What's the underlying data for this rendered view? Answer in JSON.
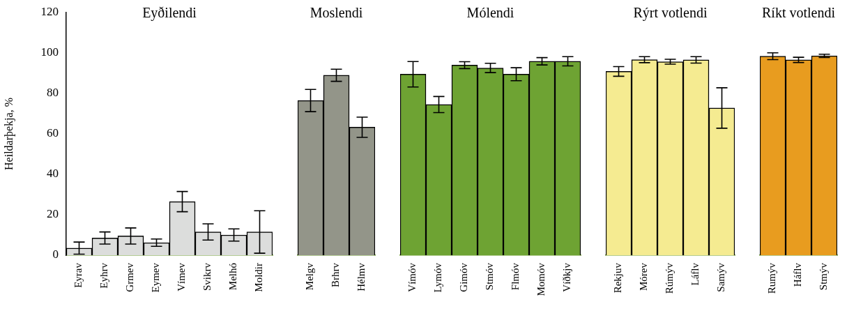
{
  "chart_data": [
    {
      "type": "bar",
      "title": "Eyðilendi",
      "ylabel": "Heildarþekja, %",
      "categories": [
        "Eyrav",
        "Eyhrv",
        "Grmev",
        "Eymev",
        "Vímev",
        "Svikrv",
        "Melhó",
        "Moldir"
      ],
      "values": [
        3.5,
        8.5,
        9.5,
        6.2,
        26.5,
        11.5,
        10,
        11.5
      ],
      "errors": [
        3,
        3,
        4,
        1.8,
        5,
        4,
        3,
        10.5
      ],
      "color": "#dcdddc",
      "ylim": [
        0,
        120
      ],
      "yticks": [
        0,
        20,
        40,
        60,
        80,
        100,
        120
      ]
    },
    {
      "type": "bar",
      "title": "Moslendi",
      "categories": [
        "Melgv",
        "Brhrv",
        "Hélmv"
      ],
      "values": [
        76.5,
        89,
        63.3
      ],
      "errors": [
        5.5,
        3,
        5
      ],
      "color": "#939589",
      "ylim": [
        0,
        120
      ],
      "yticks": [
        0,
        20,
        40,
        60,
        80,
        100,
        120
      ],
      "tick_labels": "x"
    },
    {
      "type": "bar",
      "title": "Mólendi",
      "categories": [
        "Vímóv",
        "Lymóv",
        "Gimóv",
        "Stmóv",
        "Flmóv",
        "Momóv",
        "Víðkjv"
      ],
      "values": [
        89.5,
        74.5,
        94,
        92.6,
        89.5,
        95.9,
        95.9
      ],
      "errors": [
        6.3,
        4,
        1.7,
        2.3,
        3.2,
        1.8,
        2.3
      ],
      "color": "#6ea333",
      "ylim": [
        0,
        120
      ],
      "yticks": [
        0,
        20,
        40,
        60,
        80,
        100,
        120
      ],
      "tick_labels": "x"
    },
    {
      "type": "bar",
      "title": "Rýrt votlendi",
      "categories": [
        "Rekjuv",
        "Mórev",
        "Rúmýv",
        "Láflv",
        "Samýv"
      ],
      "values": [
        90.9,
        96.7,
        95.7,
        96.6,
        72.8
      ],
      "errors": [
        2.4,
        1.5,
        1.2,
        1.6,
        10
      ],
      "color": "#f5eb91",
      "ylim": [
        0,
        120
      ],
      "yticks": [
        0,
        20,
        40,
        60,
        80,
        100,
        120
      ],
      "tick_labels": "x"
    },
    {
      "type": "bar",
      "title": "Ríkt votlendi",
      "categories": [
        "Rumýv",
        "Háflv",
        "Stmýv"
      ],
      "values": [
        98.4,
        96.6,
        98.6
      ],
      "errors": [
        1.7,
        1.3,
        0.8
      ],
      "color": "#e89c1f",
      "ylim": [
        0,
        120
      ],
      "yticks": [
        0,
        20,
        40,
        60,
        80,
        100,
        120
      ],
      "tick_labels": "x"
    }
  ]
}
